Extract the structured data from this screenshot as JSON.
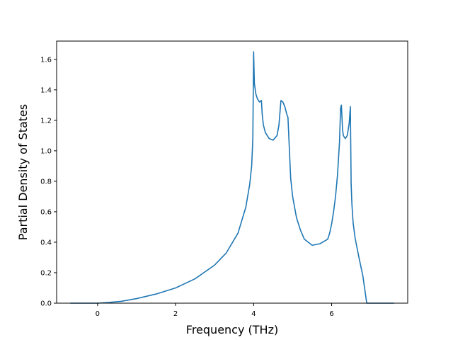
{
  "chart_data": {
    "type": "line",
    "title": "",
    "xlabel": "Frequency (THz)",
    "ylabel": "Partial Density of States",
    "xlim": [
      -1.05,
      7.95
    ],
    "ylim": [
      0.0,
      1.72
    ],
    "xticks": [
      0,
      2,
      4,
      6
    ],
    "xtick_labels": [
      "0",
      "2",
      "4",
      "6"
    ],
    "yticks": [
      0.0,
      0.2,
      0.4,
      0.6,
      0.8,
      1.0,
      1.2,
      1.4,
      1.6
    ],
    "ytick_labels": [
      "0.0",
      "0.2",
      "0.4",
      "0.6",
      "0.8",
      "1.0",
      "1.2",
      "1.4",
      "1.6"
    ],
    "grid": false,
    "legend": "none",
    "colors": {
      "line": "#1f77b4"
    },
    "series": [
      {
        "x": [
          -0.7,
          0.0,
          0.3,
          0.6,
          1.0,
          1.5,
          2.0,
          2.5,
          3.0,
          3.3,
          3.6,
          3.8,
          3.9,
          3.95,
          3.98,
          4.0,
          4.02,
          4.06,
          4.1,
          4.15,
          4.2,
          4.22,
          4.25,
          4.3,
          4.4,
          4.5,
          4.6,
          4.65,
          4.7,
          4.75,
          4.8,
          4.85,
          4.88,
          4.95,
          5.0,
          5.1,
          5.2,
          5.3,
          5.5,
          5.7,
          5.9,
          5.95,
          6.0,
          6.05,
          6.1,
          6.15,
          6.2,
          6.23,
          6.25,
          6.28,
          6.3,
          6.35,
          6.4,
          6.45,
          6.48,
          6.5,
          6.52,
          6.55,
          6.6,
          6.7,
          6.8,
          6.9,
          7.0,
          7.6
        ],
        "y": [
          0.0,
          0.0,
          0.005,
          0.012,
          0.03,
          0.06,
          0.1,
          0.16,
          0.25,
          0.33,
          0.46,
          0.63,
          0.78,
          0.9,
          1.08,
          1.65,
          1.44,
          1.37,
          1.34,
          1.32,
          1.33,
          1.24,
          1.17,
          1.12,
          1.08,
          1.07,
          1.1,
          1.17,
          1.33,
          1.32,
          1.29,
          1.24,
          1.22,
          0.82,
          0.7,
          0.56,
          0.48,
          0.42,
          0.38,
          0.39,
          0.42,
          0.46,
          0.52,
          0.6,
          0.7,
          0.84,
          1.05,
          1.28,
          1.3,
          1.14,
          1.1,
          1.08,
          1.1,
          1.18,
          1.29,
          0.78,
          0.65,
          0.53,
          0.43,
          0.3,
          0.18,
          0.0,
          0.0,
          0.0
        ]
      }
    ]
  }
}
